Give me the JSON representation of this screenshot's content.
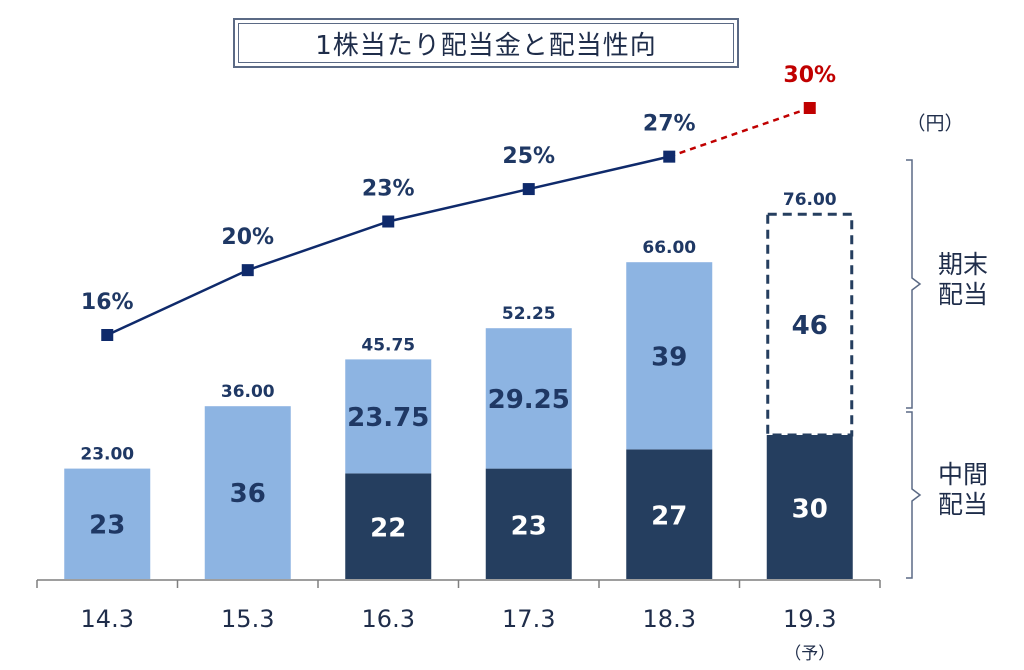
{
  "title": "1株当たり配当金と配当性向",
  "unit_label": "（円）",
  "bracket_labels": {
    "year_end": "期末\n配当",
    "interim": "中間\n配当"
  },
  "forecast_note": "（予）",
  "colors": {
    "interim": "#253e5f",
    "year_end": "#8db4e2",
    "line": "#0f2a6b",
    "forecast": "#c00000",
    "axis": "#7f7f7f",
    "text": "#1f3864"
  },
  "chart_data": {
    "type": "bar",
    "title": "1株当たり配当金と配当性向",
    "categories": [
      "14.3",
      "15.3",
      "16.3",
      "17.3",
      "18.3",
      "19.3"
    ],
    "series": [
      {
        "name": "中間配当",
        "values": [
          null,
          null,
          22,
          23,
          27,
          30
        ],
        "labels": [
          "",
          "",
          "22",
          "23",
          "27",
          "30"
        ]
      },
      {
        "name": "期末配当",
        "values": [
          23,
          36,
          23.75,
          29.25,
          39,
          46
        ],
        "labels": [
          "23",
          "36",
          "23.75",
          "29.25",
          "39",
          "46"
        ]
      }
    ],
    "totals": [
      23.0,
      36.0,
      45.75,
      52.25,
      66.0,
      76.0
    ],
    "total_labels": [
      "23.00",
      "36.00",
      "45.75",
      "52.25",
      "66.00",
      "76.00"
    ],
    "forecast_index": 5,
    "payout_ratio": {
      "values": [
        16,
        20,
        23,
        25,
        27,
        30
      ],
      "labels": [
        "16%",
        "20%",
        "23%",
        "25%",
        "27%",
        "30%"
      ]
    },
    "ylim": [
      0,
      80
    ]
  }
}
